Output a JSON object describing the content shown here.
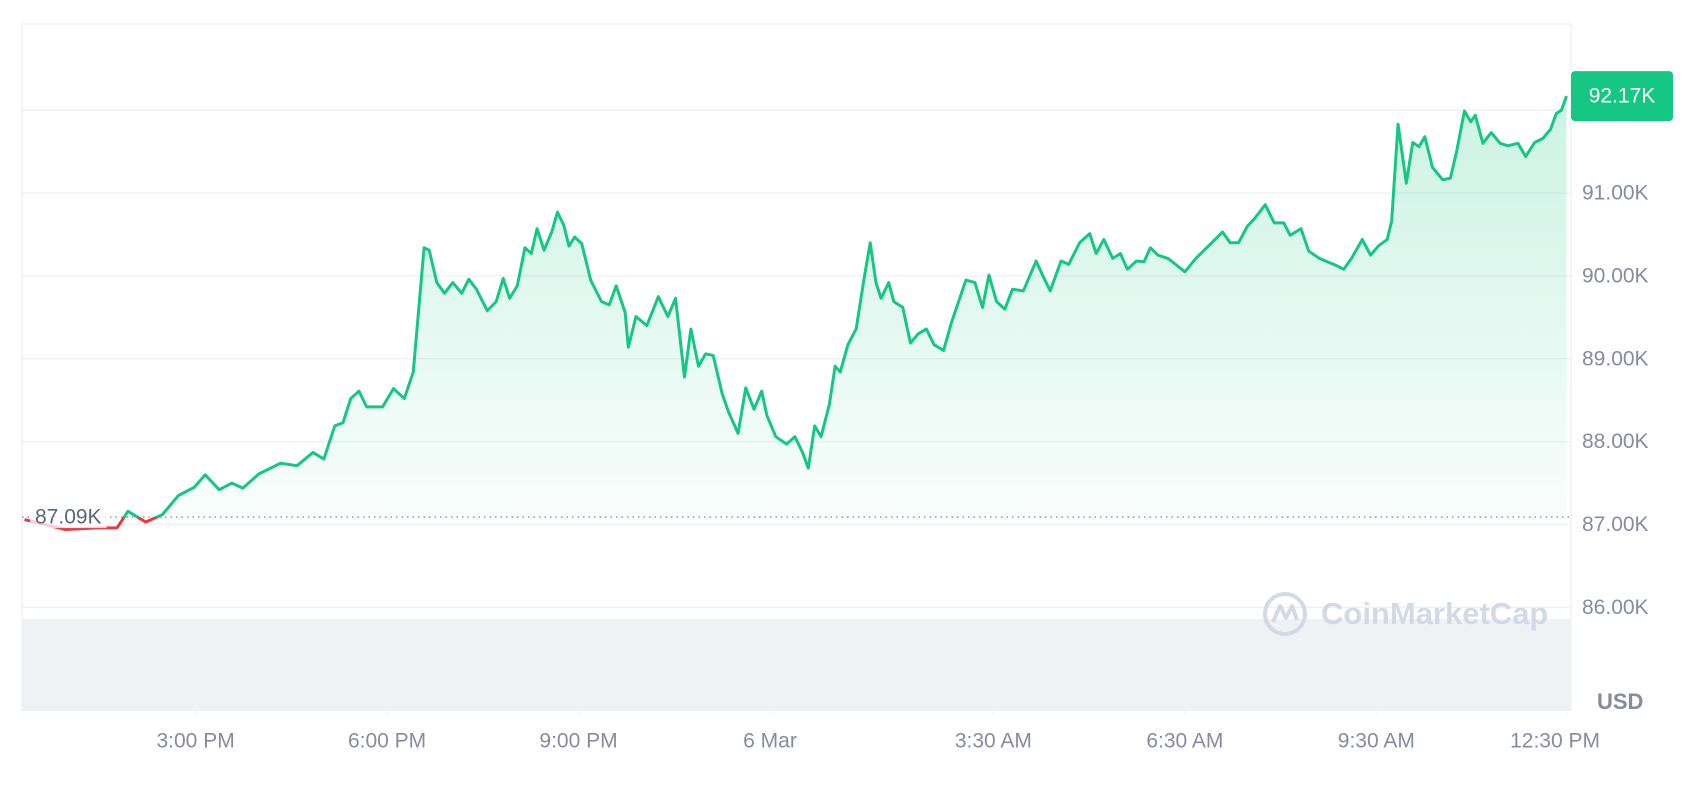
{
  "chart_data": {
    "type": "line",
    "color": "#16c784",
    "down_color": "#ea3943",
    "grid": true,
    "y_label": "USD",
    "watermark": "CoinMarketCap",
    "xlim": [
      12.28,
      36.55
    ],
    "xticks": [
      {
        "value": 15,
        "label": "3:00 PM"
      },
      {
        "value": 18,
        "label": "6:00 PM"
      },
      {
        "value": 21,
        "label": "9:00 PM"
      },
      {
        "value": 24,
        "label": "6 Mar"
      },
      {
        "value": 27.5,
        "label": "3:30 AM"
      },
      {
        "value": 30.5,
        "label": "6:30 AM"
      },
      {
        "value": 33.5,
        "label": "9:30 AM"
      },
      {
        "value": 36.5,
        "label": "12:30 PM"
      }
    ],
    "ylim": [
      84.75,
      93.04
    ],
    "yticks": [
      {
        "value": 86,
        "label": "86.00K"
      },
      {
        "value": 87,
        "label": "87.00K"
      },
      {
        "value": 88,
        "label": "88.00K"
      },
      {
        "value": 89,
        "label": "89.00K"
      },
      {
        "value": 90,
        "label": "90.00K"
      },
      {
        "value": 91,
        "label": "91.00K"
      },
      {
        "value": 92,
        "label": null
      }
    ],
    "reference": {
      "value": 87.09,
      "label": "87.09K"
    },
    "current_price": {
      "value": 92.17,
      "label": "92.17K"
    },
    "x": [
      12.32,
      12.96,
      13.47,
      13.77,
      13.94,
      14.22,
      14.48,
      14.73,
      14.98,
      15.15,
      15.37,
      15.57,
      15.74,
      15.99,
      16.33,
      16.59,
      16.84,
      17.01,
      17.18,
      17.31,
      17.43,
      17.56,
      17.68,
      17.93,
      18.1,
      18.27,
      18.41,
      18.58,
      18.66,
      18.78,
      18.9,
      19.03,
      19.17,
      19.28,
      19.4,
      19.57,
      19.71,
      19.82,
      19.92,
      20.04,
      20.16,
      20.26,
      20.35,
      20.46,
      20.58,
      20.67,
      20.77,
      20.85,
      20.94,
      21.05,
      21.19,
      21.36,
      21.48,
      21.59,
      21.73,
      21.78,
      21.9,
      22.07,
      22.25,
      22.4,
      22.52,
      22.66,
      22.76,
      22.88,
      22.99,
      23.11,
      23.25,
      23.35,
      23.5,
      23.62,
      23.75,
      23.87,
      23.95,
      24.09,
      24.26,
      24.39,
      24.51,
      24.6,
      24.7,
      24.8,
      24.93,
      25.02,
      25.1,
      25.22,
      25.35,
      25.47,
      25.57,
      25.66,
      25.74,
      25.86,
      25.94,
      26.08,
      26.2,
      26.32,
      26.45,
      26.57,
      26.72,
      26.84,
      27.07,
      27.21,
      27.33,
      27.43,
      27.55,
      27.68,
      27.8,
      27.97,
      28.17,
      28.27,
      28.39,
      28.56,
      28.68,
      28.85,
      29.01,
      29.11,
      29.23,
      29.37,
      29.49,
      29.6,
      29.74,
      29.86,
      29.96,
      30.08,
      30.24,
      30.5,
      30.67,
      30.92,
      31.09,
      31.21,
      31.34,
      31.48,
      31.59,
      31.76,
      31.9,
      32.05,
      32.15,
      32.32,
      32.44,
      32.61,
      32.86,
      32.99,
      33.11,
      33.28,
      33.41,
      33.53,
      33.67,
      33.74,
      33.84,
      33.97,
      34.07,
      34.17,
      34.26,
      34.38,
      34.54,
      34.66,
      34.76,
      34.88,
      34.98,
      35.05,
      35.17,
      35.3,
      35.44,
      35.56,
      35.72,
      35.84,
      35.98,
      36.11,
      36.23,
      36.32,
      36.4,
      36.48
    ],
    "values": [
      87.06,
      86.94,
      86.96,
      86.96,
      87.16,
      87.03,
      87.12,
      87.35,
      87.45,
      87.6,
      87.42,
      87.5,
      87.44,
      87.61,
      87.74,
      87.71,
      87.87,
      87.79,
      88.19,
      88.23,
      88.52,
      88.61,
      88.42,
      88.42,
      88.64,
      88.52,
      88.84,
      90.34,
      90.31,
      89.92,
      89.79,
      89.92,
      89.79,
      89.96,
      89.84,
      89.58,
      89.69,
      89.97,
      89.73,
      89.88,
      90.34,
      90.27,
      90.57,
      90.31,
      90.53,
      90.77,
      90.61,
      90.36,
      90.47,
      90.39,
      89.95,
      89.69,
      89.65,
      89.88,
      89.56,
      89.14,
      89.51,
      89.4,
      89.75,
      89.51,
      89.73,
      88.78,
      89.36,
      88.91,
      89.06,
      89.04,
      88.58,
      88.36,
      88.1,
      88.65,
      88.39,
      88.61,
      88.32,
      88.06,
      87.97,
      88.06,
      87.87,
      87.68,
      88.19,
      88.06,
      88.45,
      88.91,
      88.84,
      89.17,
      89.36,
      89.95,
      90.4,
      89.92,
      89.73,
      89.92,
      89.69,
      89.62,
      89.19,
      89.3,
      89.36,
      89.17,
      89.1,
      89.43,
      89.95,
      89.92,
      89.62,
      90.01,
      89.69,
      89.6,
      89.84,
      89.82,
      90.18,
      90.01,
      89.82,
      90.18,
      90.14,
      90.4,
      90.51,
      90.27,
      90.44,
      90.21,
      90.27,
      90.08,
      90.18,
      90.17,
      90.34,
      90.25,
      90.21,
      90.05,
      90.21,
      90.4,
      90.53,
      90.4,
      90.4,
      90.6,
      90.69,
      90.86,
      90.64,
      90.64,
      90.49,
      90.57,
      90.3,
      90.21,
      90.13,
      90.08,
      90.21,
      90.44,
      90.25,
      90.36,
      90.44,
      90.66,
      91.83,
      91.12,
      91.61,
      91.56,
      91.68,
      91.31,
      91.16,
      91.18,
      91.51,
      91.99,
      91.86,
      91.94,
      91.6,
      91.73,
      91.6,
      91.57,
      91.6,
      91.44,
      91.61,
      91.66,
      91.77,
      91.96,
      92.0,
      92.17
    ]
  }
}
